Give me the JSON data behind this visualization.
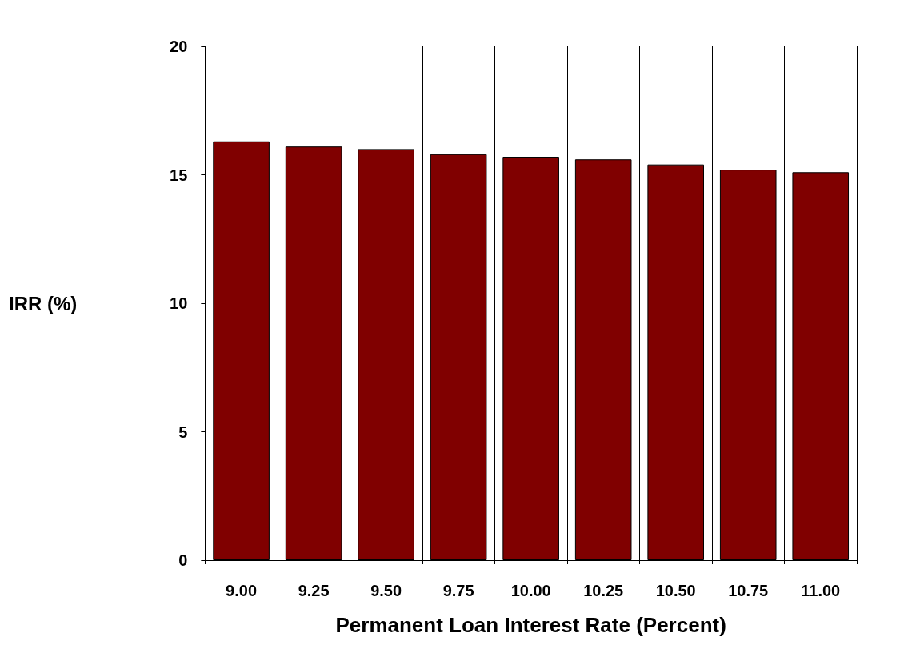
{
  "chart_data": {
    "type": "bar",
    "xlabel": "Permanent Loan Interest Rate (Percent)",
    "ylabel": "IRR (%)",
    "categories": [
      "9.00",
      "9.25",
      "9.50",
      "9.75",
      "10.00",
      "10.25",
      "10.50",
      "10.75",
      "11.00"
    ],
    "values": [
      16.3,
      16.1,
      16.0,
      15.8,
      15.7,
      15.6,
      15.4,
      15.2,
      15.1
    ],
    "color": "#800000",
    "ylim": [
      0,
      20
    ],
    "yticks": [
      0,
      5,
      10,
      15,
      20
    ],
    "grid": "x"
  }
}
